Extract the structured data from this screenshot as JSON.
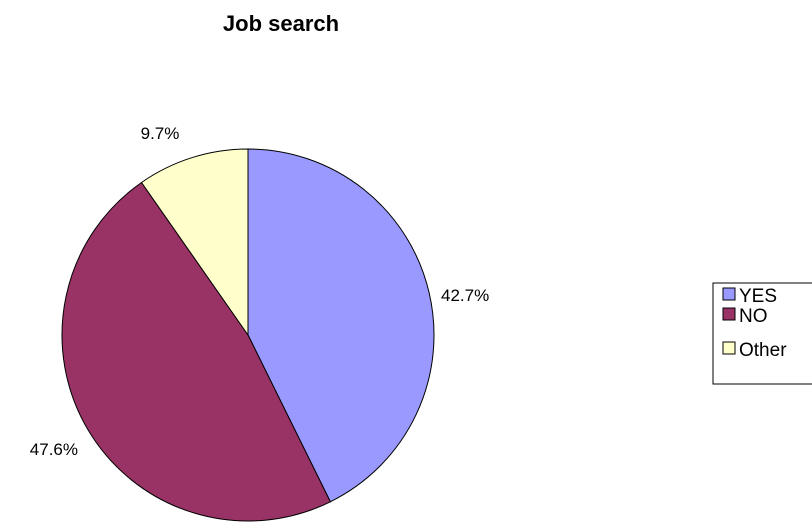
{
  "chart_data": {
    "type": "pie",
    "title": "Job search",
    "categories": [
      "YES",
      "NO",
      "Other"
    ],
    "values": [
      42.7,
      47.6,
      9.7
    ],
    "data_labels": [
      "42.7%",
      "47.6%",
      "9.7%"
    ],
    "colors": [
      "#9999FF",
      "#993366",
      "#FFFFCC"
    ],
    "legend": {
      "placement": "right",
      "entries": [
        "YES",
        "NO",
        "Other"
      ]
    },
    "start_angle": "12 o'clock",
    "direction": "clockwise"
  }
}
